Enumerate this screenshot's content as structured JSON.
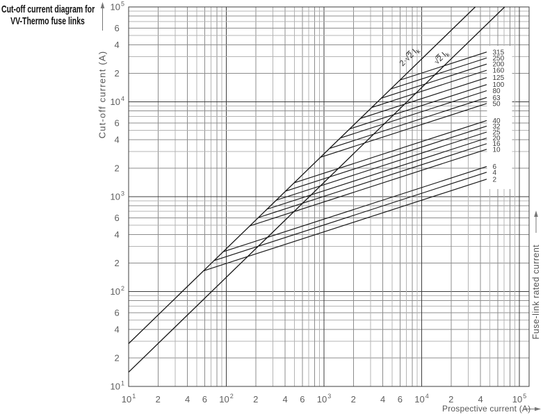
{
  "title": {
    "line1": "Cut-off current diagram for",
    "line2": "VV-Thermo fuse links"
  },
  "axes": {
    "x": {
      "label": "Prospective current (A)",
      "scale": "log",
      "min": 10,
      "max": 100000
    },
    "y": {
      "label": "Cut-off current (A)",
      "scale": "log",
      "min": 10,
      "max": 100000
    },
    "right": {
      "label": "Fuse-link rated current"
    }
  },
  "colors": {
    "background": "#ffffff",
    "curve": "#161616",
    "grid_major": "#3d3d3d",
    "grid_mid": "#8c8c8c",
    "grid_minor": "#b4b4b4",
    "tick_text": "#5f5f5f",
    "axis_text": "#555555",
    "title_text": "#111111"
  },
  "chart_data": {
    "type": "line",
    "title": "Cut-off current diagram for VV-Thermo fuse links",
    "xlabel": "Prospective current (A)",
    "ylabel": "Cut-off current (A)",
    "right_axis_label": "Fuse-link rated current",
    "x_scale": "log",
    "y_scale": "log",
    "xlim": [
      10,
      100000
    ],
    "ylim": [
      10,
      100000
    ],
    "grid": "full log grid, subdivisions 2-9 each decade",
    "x_ticks": [
      {
        "v": 10,
        "t": "10",
        "e": "1"
      },
      {
        "v": 20,
        "t": "2"
      },
      {
        "v": 40,
        "t": "4"
      },
      {
        "v": 60,
        "t": "6"
      },
      {
        "v": 100,
        "t": "10",
        "e": "2"
      },
      {
        "v": 200,
        "t": "2"
      },
      {
        "v": 400,
        "t": "4"
      },
      {
        "v": 600,
        "t": "6"
      },
      {
        "v": 1000,
        "t": "10",
        "e": "3"
      },
      {
        "v": 2000,
        "t": "2"
      },
      {
        "v": 4000,
        "t": "4"
      },
      {
        "v": 6000,
        "t": "6"
      },
      {
        "v": 10000,
        "t": "10",
        "e": "4"
      },
      {
        "v": 20000,
        "t": "2"
      },
      {
        "v": 40000,
        "t": "4"
      },
      {
        "v": 100000,
        "t": "10",
        "e": "5"
      }
    ],
    "y_ticks": [
      {
        "v": 100000,
        "t": "10",
        "e": "5"
      },
      {
        "v": 60000,
        "t": "6"
      },
      {
        "v": 40000,
        "t": "4"
      },
      {
        "v": 20000,
        "t": "2"
      },
      {
        "v": 10000,
        "t": "10",
        "e": "4"
      },
      {
        "v": 6000,
        "t": "6"
      },
      {
        "v": 4000,
        "t": "4"
      },
      {
        "v": 2000,
        "t": "2"
      },
      {
        "v": 1000,
        "t": "10",
        "e": "3"
      },
      {
        "v": 600,
        "t": "6"
      },
      {
        "v": 400,
        "t": "4"
      },
      {
        "v": 200,
        "t": "2"
      },
      {
        "v": 100,
        "t": "10",
        "e": "2"
      },
      {
        "v": 60,
        "t": "6"
      },
      {
        "v": 40,
        "t": "4"
      },
      {
        "v": 20,
        "t": "2"
      },
      {
        "v": 10,
        "t": "10",
        "e": "1"
      }
    ],
    "reference_lines": [
      {
        "label": "2·√2 Ik",
        "factor_of_prospective": 2.8284,
        "parts": {
          "pre": "2·√",
          "rad": "2",
          "post": " I",
          "sub": "k"
        }
      },
      {
        "label": "√2 Ik",
        "factor_of_prospective": 1.4142,
        "parts": {
          "pre": "√",
          "rad": "2",
          "post": " I",
          "sub": "k"
        }
      }
    ],
    "curve_model": "each fuse curve starts on the 2·√2·Ik line and rises with slope 1/3 (log-log) to its end point",
    "fuse_curves": [
      {
        "rating_A": "315",
        "start_prospective_A": 5990,
        "end_prospective_A": 46300,
        "end_cutoff_A": 33500
      },
      {
        "rating_A": "250",
        "start_prospective_A": 4830,
        "end_prospective_A": 46300,
        "end_cutoff_A": 29000
      },
      {
        "rating_A": "200",
        "start_prospective_A": 3860,
        "end_prospective_A": 46300,
        "end_cutoff_A": 25000
      },
      {
        "rating_A": "160",
        "start_prospective_A": 3080,
        "end_prospective_A": 46300,
        "end_cutoff_A": 21500
      },
      {
        "rating_A": "125",
        "start_prospective_A": 2360,
        "end_prospective_A": 46300,
        "end_cutoff_A": 18000
      },
      {
        "rating_A": "100",
        "start_prospective_A": 1830,
        "end_prospective_A": 46300,
        "end_cutoff_A": 15200
      },
      {
        "rating_A": "80",
        "start_prospective_A": 1470,
        "end_prospective_A": 46300,
        "end_cutoff_A": 13100
      },
      {
        "rating_A": "63",
        "start_prospective_A": 1140,
        "end_prospective_A": 46300,
        "end_cutoff_A": 11100
      },
      {
        "rating_A": "50",
        "start_prospective_A": 920,
        "end_prospective_A": 46300,
        "end_cutoff_A": 9600
      },
      {
        "rating_A": "40",
        "start_prospective_A": 495,
        "end_prospective_A": 46300,
        "end_cutoff_A": 6350
      },
      {
        "rating_A": "32",
        "start_prospective_A": 404,
        "end_prospective_A": 46300,
        "end_cutoff_A": 5550
      },
      {
        "rating_A": "25",
        "start_prospective_A": 325,
        "end_prospective_A": 46300,
        "end_cutoff_A": 4800
      },
      {
        "rating_A": "20",
        "start_prospective_A": 261,
        "end_prospective_A": 46300,
        "end_cutoff_A": 4150
      },
      {
        "rating_A": "16",
        "start_prospective_A": 213,
        "end_prospective_A": 46300,
        "end_cutoff_A": 3620
      },
      {
        "rating_A": "10",
        "start_prospective_A": 174,
        "end_prospective_A": 46300,
        "end_cutoff_A": 3160
      },
      {
        "rating_A": "6",
        "start_prospective_A": 93,
        "end_prospective_A": 46300,
        "end_cutoff_A": 2080
      },
      {
        "rating_A": "4",
        "start_prospective_A": 75,
        "end_prospective_A": 46300,
        "end_cutoff_A": 1810
      },
      {
        "rating_A": "2",
        "start_prospective_A": 58.5,
        "end_prospective_A": 46300,
        "end_cutoff_A": 1530
      }
    ]
  }
}
